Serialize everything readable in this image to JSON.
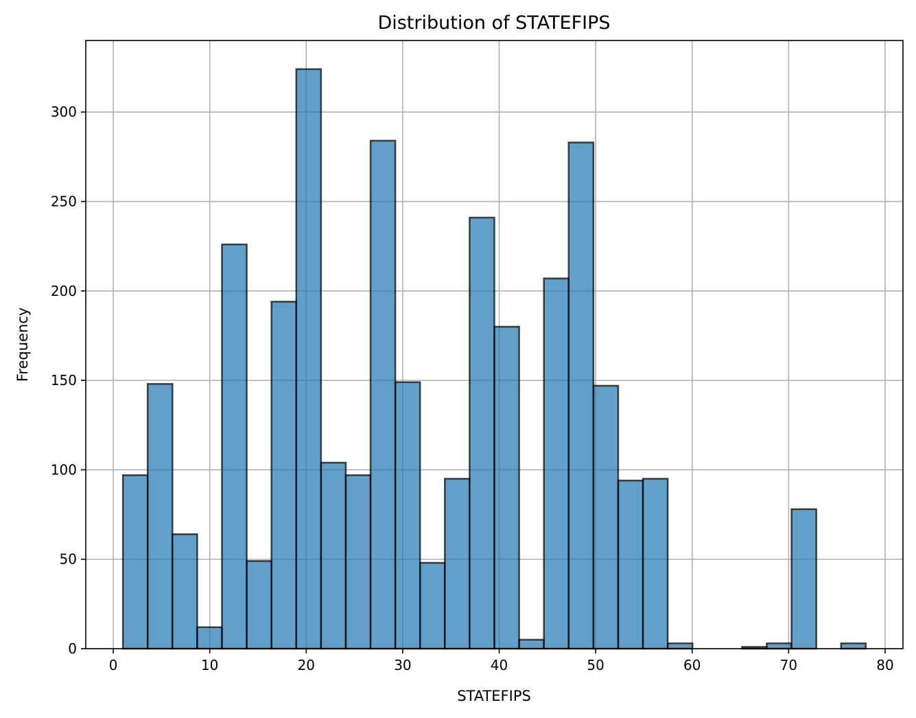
{
  "chart_data": {
    "type": "bar",
    "subtype": "histogram",
    "title": "Distribution of STATEFIPS",
    "xlabel": "STATEFIPS",
    "ylabel": "Frequency",
    "bin_start": 1.0,
    "bin_width": 2.5667,
    "values": [
      97,
      148,
      64,
      12,
      226,
      49,
      194,
      324,
      104,
      97,
      284,
      149,
      48,
      95,
      241,
      180,
      5,
      207,
      283,
      147,
      94,
      95,
      3,
      0,
      0,
      1,
      3,
      78,
      0,
      3
    ],
    "xlim": [
      -2.85,
      81.85
    ],
    "ylim": [
      0,
      340
    ],
    "xticks": [
      0,
      10,
      20,
      30,
      40,
      50,
      60,
      70,
      80
    ],
    "yticks": [
      0,
      50,
      100,
      150,
      200,
      250,
      300
    ],
    "grid": true,
    "legend": "none",
    "bar_color": "#1f77b4",
    "bar_opacity": 0.7,
    "edge_color": "#000000"
  }
}
